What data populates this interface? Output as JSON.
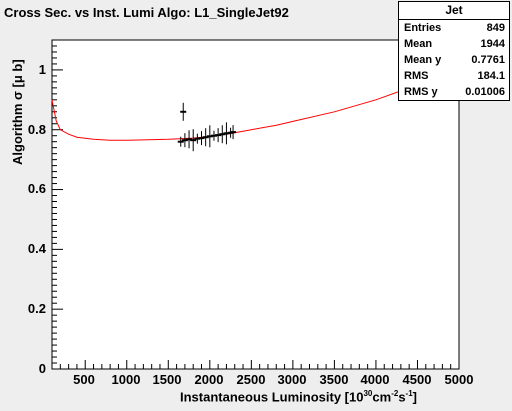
{
  "chart_data": {
    "type": "scatter",
    "title": "Cross Sec. vs Inst. Lumi Algo: L1_SingleJet92",
    "xlabel": "Instantaneous Luminosity [10",
    "xlabel_sup1": "30",
    "xlabel_mid": "cm",
    "xlabel_sup2": "-2",
    "xlabel_mid2": "s",
    "xlabel_sup3": "-1",
    "xlabel_end": "]",
    "ylabel": "Algorithm σ [μ b]",
    "xlim": [
      100,
      5000
    ],
    "ylim": [
      0,
      1.1
    ],
    "x_ticks": [
      "500",
      "1000",
      "1500",
      "2000",
      "2500",
      "3000",
      "3500",
      "4000",
      "4500",
      "5000"
    ],
    "y_ticks": [
      "0",
      "0.2",
      "0.4",
      "0.6",
      "0.8",
      "1"
    ],
    "fit_curve": {
      "color": "#ff0000",
      "x": [
        100,
        150,
        200,
        300,
        400,
        600,
        800,
        1000,
        1200,
        1500,
        1800,
        2000,
        2200,
        2500,
        2800,
        3000,
        3500,
        4000,
        4500,
        4700
      ],
      "y": [
        0.9,
        0.83,
        0.8,
        0.785,
        0.775,
        0.768,
        0.765,
        0.765,
        0.766,
        0.768,
        0.772,
        0.777,
        0.785,
        0.8,
        0.815,
        0.828,
        0.86,
        0.9,
        0.95,
        0.97
      ]
    },
    "points": {
      "color": "#000000",
      "x": [
        1650,
        1700,
        1750,
        1800,
        1850,
        1900,
        1950,
        2000,
        2050,
        2100,
        2150,
        2200,
        2250,
        2280,
        1680
      ],
      "y": [
        0.76,
        0.765,
        0.768,
        0.765,
        0.77,
        0.772,
        0.775,
        0.778,
        0.78,
        0.782,
        0.785,
        0.788,
        0.79,
        0.792,
        0.86
      ]
    }
  },
  "stats": {
    "title": "Jet",
    "rows": [
      {
        "label": "Entries",
        "value": "849"
      },
      {
        "label": "Mean",
        "value": "1944"
      },
      {
        "label": "Mean y",
        "value": "0.7761"
      },
      {
        "label": "RMS",
        "value": "184.1"
      },
      {
        "label": "RMS y",
        "value": "0.01006"
      }
    ]
  }
}
